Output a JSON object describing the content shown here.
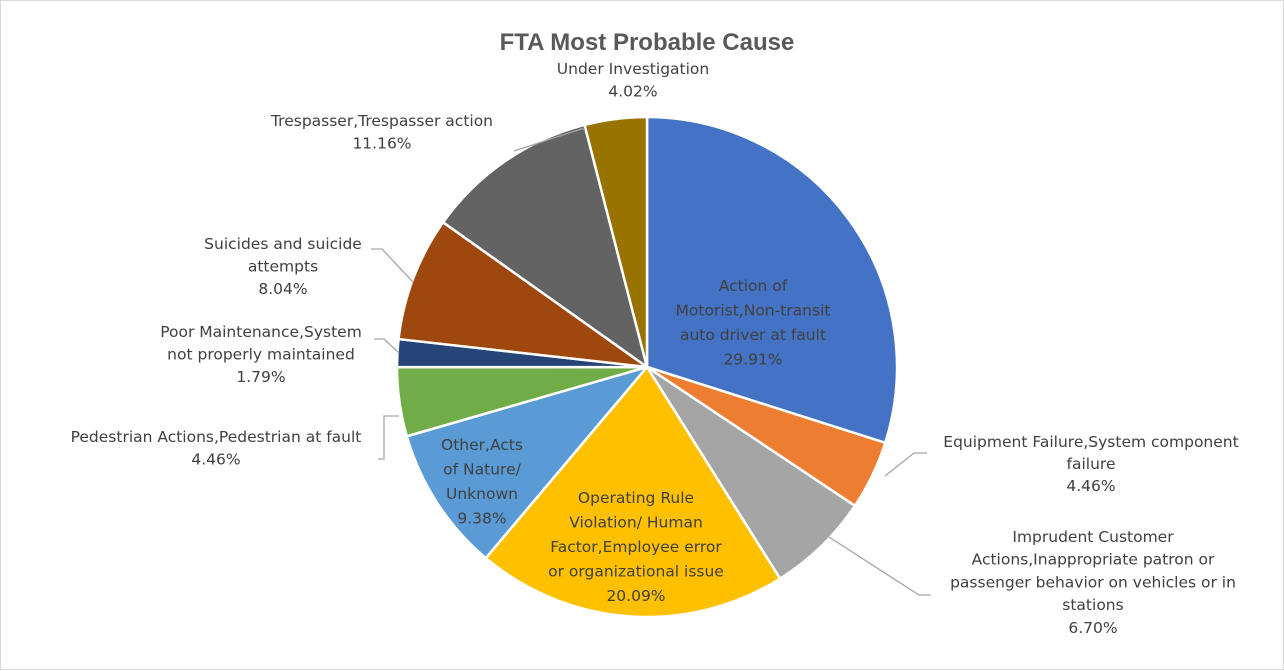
{
  "chart_data": {
    "type": "pie",
    "title": "FTA Most Probable Cause",
    "slices": [
      {
        "label": [
          "Action of",
          "Motorist,Non-transit",
          "auto driver at fault"
        ],
        "value": 29.91,
        "display": "29.91%",
        "color": "#4472C4"
      },
      {
        "label": [
          "Equipment Failure,System component",
          "failure"
        ],
        "value": 4.46,
        "display": "4.46%",
        "color": "#ED7D31"
      },
      {
        "label": [
          "Imprudent Customer",
          "Actions,Inappropriate patron or",
          "passenger behavior on vehicles or in",
          "stations"
        ],
        "value": 6.7,
        "display": "6.70%",
        "color": "#A5A5A5"
      },
      {
        "label": [
          "Operating Rule",
          "Violation/ Human",
          "Factor,Employee error",
          "or organizational issue"
        ],
        "value": 20.09,
        "display": "20.09%",
        "color": "#FFC000"
      },
      {
        "label": [
          "Other,Acts",
          "of Nature/",
          "Unknown"
        ],
        "value": 9.38,
        "display": "9.38%",
        "color": "#5B9BD5"
      },
      {
        "label": [
          "Pedestrian Actions,Pedestrian at fault"
        ],
        "value": 4.46,
        "display": "4.46%",
        "color": "#70AD47"
      },
      {
        "label": [
          "Poor Maintenance,System",
          "not properly maintained"
        ],
        "value": 1.79,
        "display": "1.79%",
        "color": "#264478"
      },
      {
        "label": [
          "Suicides and suicide",
          "attempts"
        ],
        "value": 8.04,
        "display": "8.04%",
        "color": "#9E480E"
      },
      {
        "label": [
          "Trespasser,Trespasser action"
        ],
        "value": 11.16,
        "display": "11.16%",
        "color": "#636363"
      },
      {
        "label": [
          "Under Investigation"
        ],
        "value": 4.02,
        "display": "4.02%",
        "color": "#997300"
      }
    ]
  }
}
